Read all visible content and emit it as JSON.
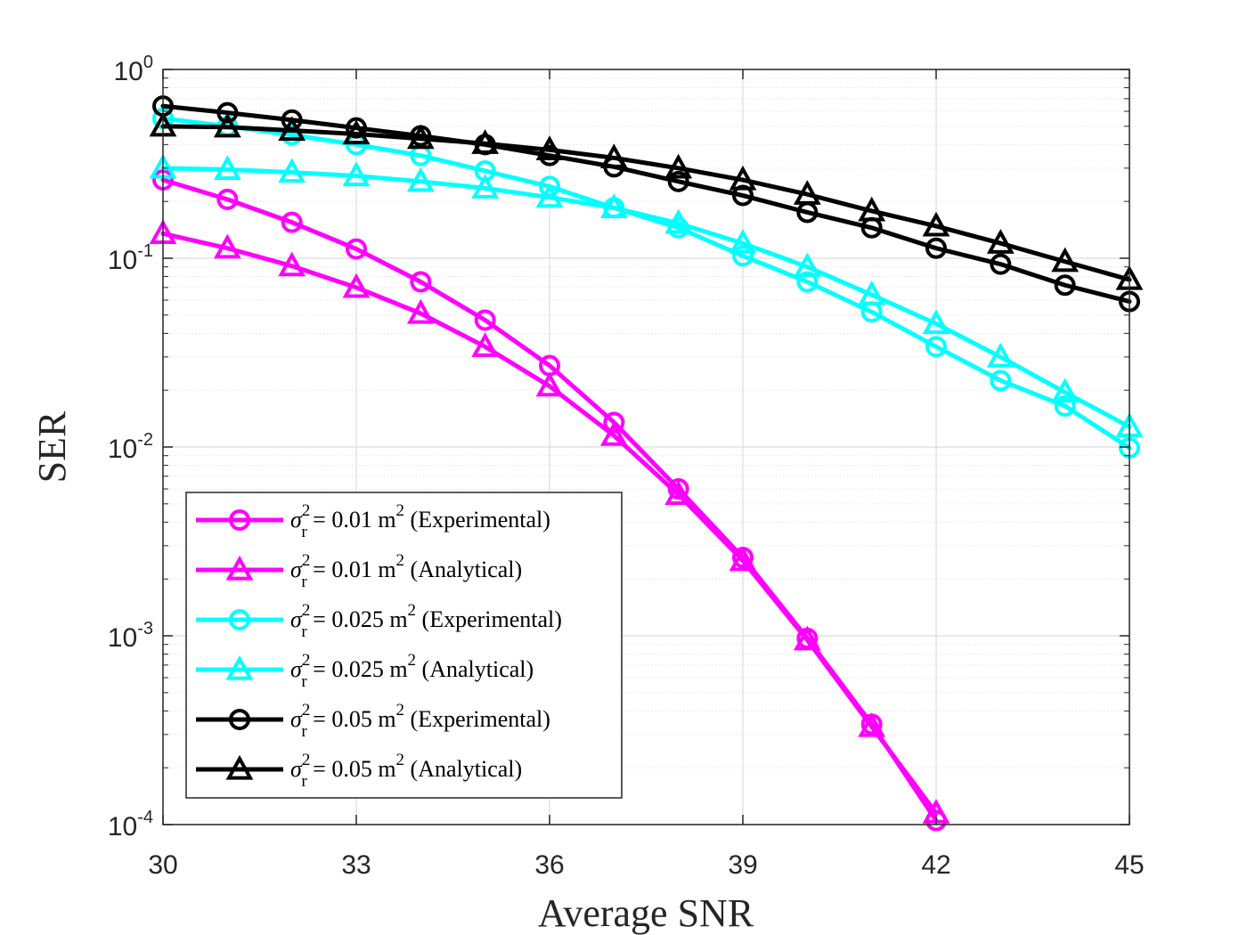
{
  "chart_data": {
    "type": "line",
    "title": "",
    "xlabel": "Average SNR",
    "ylabel": "SER",
    "yscale": "log",
    "xlim": [
      30,
      45
    ],
    "ylim": [
      0.0001,
      1
    ],
    "grid": true,
    "legend_position": "bottom-left",
    "x_ticks": [
      30,
      33,
      36,
      39,
      42,
      45
    ],
    "x_tick_labels": [
      "30",
      "33",
      "36",
      "39",
      "42",
      "45"
    ],
    "y_ticks": [
      {
        "value": 1,
        "base": "10",
        "exp": "0"
      },
      {
        "value": 0.1,
        "base": "10",
        "exp": "-1"
      },
      {
        "value": 0.01,
        "base": "10",
        "exp": "-2"
      },
      {
        "value": 0.001,
        "base": "10",
        "exp": "-3"
      },
      {
        "value": 0.0001,
        "base": "10",
        "exp": "-4"
      }
    ],
    "series": [
      {
        "name": "σr2 = 0.01 m2 (Experimental)",
        "legend": {
          "sym": "σ",
          "sup": "2",
          "sub": "r",
          "value": " = 0.01 m",
          "unit_exp": "2",
          "kind": " (Experimental)"
        },
        "color": "#ff00ff",
        "marker": "circle",
        "x": [
          30,
          31,
          32,
          33,
          34,
          35,
          36,
          37,
          38,
          39,
          40,
          41,
          42
        ],
        "values": [
          0.26,
          0.205,
          0.155,
          0.112,
          0.075,
          0.047,
          0.027,
          0.0135,
          0.006,
          0.0026,
          0.00097,
          0.00034,
          0.000105
        ]
      },
      {
        "name": "σr2 = 0.01 m2 (Analytical)",
        "legend": {
          "sym": "σ",
          "sup": "2",
          "sub": "r",
          "value": " = 0.01 m",
          "unit_exp": "2",
          "kind": " (Analytical)"
        },
        "color": "#ff00ff",
        "marker": "triangle",
        "x": [
          30,
          31,
          32,
          33,
          34,
          35,
          36,
          37,
          38,
          39,
          40,
          41,
          42
        ],
        "values": [
          0.135,
          0.113,
          0.091,
          0.07,
          0.051,
          0.034,
          0.021,
          0.0115,
          0.0056,
          0.0025,
          0.00095,
          0.00033,
          0.000115
        ]
      },
      {
        "name": "σr2 = 0.025 m2 (Experimental)",
        "legend": {
          "sym": "σ",
          "sup": "2",
          "sub": "r",
          "value": " = 0.025 m",
          "unit_exp": "2",
          "kind": " (Experimental)"
        },
        "color": "#00ffff",
        "marker": "circle",
        "x": [
          30,
          31,
          32,
          33,
          34,
          35,
          36,
          37,
          38,
          39,
          40,
          41,
          42,
          43,
          44,
          45
        ],
        "values": [
          0.55,
          0.5,
          0.45,
          0.4,
          0.35,
          0.29,
          0.24,
          0.185,
          0.145,
          0.103,
          0.075,
          0.052,
          0.034,
          0.0225,
          0.0165,
          0.0099
        ]
      },
      {
        "name": "σr2 = 0.025 m2 (Analytical)",
        "legend": {
          "sym": "σ",
          "sup": "2",
          "sub": "r",
          "value": " = 0.025 m",
          "unit_exp": "2",
          "kind": " (Analytical)"
        },
        "color": "#00ffff",
        "marker": "triangle",
        "x": [
          30,
          31,
          32,
          33,
          34,
          35,
          36,
          37,
          38,
          39,
          40,
          41,
          42,
          43,
          44,
          45
        ],
        "values": [
          0.3,
          0.295,
          0.285,
          0.273,
          0.255,
          0.235,
          0.21,
          0.185,
          0.153,
          0.12,
          0.09,
          0.064,
          0.045,
          0.03,
          0.0195,
          0.0128
        ]
      },
      {
        "name": "σr2 = 0.05 m2 (Experimental)",
        "legend": {
          "sym": "σ",
          "sup": "2",
          "sub": "r",
          "value": " = 0.05 m",
          "unit_exp": "2",
          "kind": " (Experimental)"
        },
        "color": "#000000",
        "marker": "circle",
        "x": [
          30,
          31,
          32,
          33,
          34,
          35,
          36,
          37,
          38,
          39,
          40,
          41,
          42,
          43,
          44,
          45
        ],
        "values": [
          0.64,
          0.59,
          0.54,
          0.49,
          0.445,
          0.4,
          0.35,
          0.305,
          0.255,
          0.215,
          0.175,
          0.145,
          0.113,
          0.093,
          0.072,
          0.059
        ]
      },
      {
        "name": "σr2 = 0.05 m2 (Analytical)",
        "legend": {
          "sym": "σ",
          "sup": "2",
          "sub": "r",
          "value": " = 0.05 m",
          "unit_exp": "2",
          "kind": " (Analytical)"
        },
        "color": "#000000",
        "marker": "triangle",
        "x": [
          30,
          31,
          32,
          33,
          34,
          35,
          36,
          37,
          38,
          39,
          40,
          41,
          42,
          43,
          44,
          45
        ],
        "values": [
          0.5,
          0.495,
          0.475,
          0.455,
          0.43,
          0.405,
          0.375,
          0.34,
          0.3,
          0.26,
          0.218,
          0.178,
          0.148,
          0.12,
          0.096,
          0.077
        ]
      }
    ]
  }
}
